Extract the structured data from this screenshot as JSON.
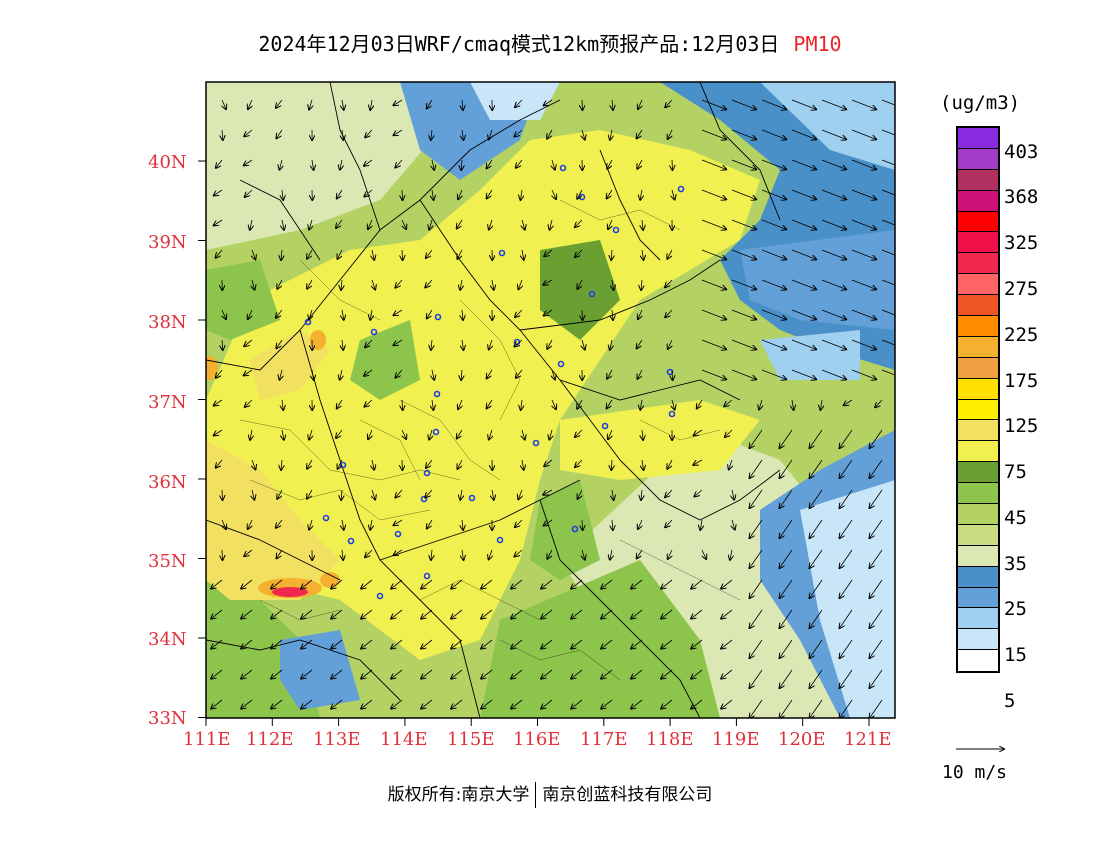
{
  "title": {
    "main": "2024年12月03日WRF/cmaq模式12km预报产品:12月03日",
    "pollutant": "PM10"
  },
  "axes": {
    "lat_labels": [
      "40N",
      "39N",
      "38N",
      "37N",
      "36N",
      "35N",
      "34N",
      "33N"
    ],
    "lon_labels": [
      "111E",
      "112E",
      "113E",
      "114E",
      "115E",
      "116E",
      "117E",
      "118E",
      "119E",
      "120E",
      "121E"
    ]
  },
  "legend": {
    "unit": "(ug/m3)",
    "colors": [
      "#8a2be2",
      "#a23cc8",
      "#b03060",
      "#cc1177",
      "#ff0000",
      "#f0104a",
      "#f0284f",
      "#ff6464",
      "#ee5522",
      "#ff8c00",
      "#f5b030",
      "#f0a040",
      "#ffe000",
      "#ffee00",
      "#f2e060",
      "#f0f050",
      "#6aa032",
      "#8cc44c",
      "#b4d264",
      "#c8dc82",
      "#dce8b4",
      "#4a90c8",
      "#64a0d8",
      "#a0d0f0",
      "#c8e6f8",
      "#ffffff"
    ],
    "labels": [
      "403",
      "368",
      "325",
      "275",
      "225",
      "175",
      "125",
      "75",
      "45",
      "35",
      "25",
      "15",
      "5"
    ]
  },
  "wind_reference": {
    "label": "10 m/s"
  },
  "copyright": {
    "left": "版权所有:南京大学",
    "right": "南京创蓝科技有限公司"
  },
  "map_colors": {
    "base": "#b4d264",
    "light_green": "#dce8b4",
    "mid_green": "#8cc44c",
    "dark_green": "#6aa032",
    "yellow": "#f0f050",
    "gold": "#f2e060",
    "orange_high": "#f5b030",
    "red_high": "#f0284f",
    "sea_dark": "#4a90c8",
    "sea_mid": "#64a0d8",
    "sea_light": "#a0d0f0",
    "sea_pale": "#c8e6f8"
  }
}
